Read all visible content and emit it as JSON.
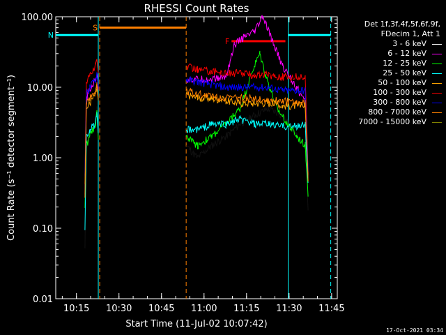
{
  "chart_data": {
    "type": "line",
    "title": "RHESSI Count Rates",
    "xlabel": "Start Time (11-Jul-02 10:07:42)",
    "ylabel": "Count Rate (s⁻¹ detector segment⁻¹)",
    "xaxis_units": "minutes since 10:07:42",
    "xlim": [
      0,
      99.3
    ],
    "ylim": [
      0.01,
      100
    ],
    "yscale": "log",
    "x_ticks": [
      "10:15",
      "10:30",
      "10:45",
      "11:00",
      "11:15",
      "11:30",
      "11:45"
    ],
    "y_ticks": [
      "0.01",
      "0.10",
      "1.00",
      "10.00",
      "100.00"
    ],
    "legend_header": [
      "Det 1f,3f,4f,5f,6f,9f,",
      "FDecim 1, Att 1"
    ],
    "series": [
      {
        "name": "3 - 6 keV",
        "color": "#000000",
        "points": [
          [
            10.3,
            0.05
          ],
          [
            10.8,
            1.5
          ],
          [
            12,
            2
          ],
          [
            14,
            3
          ],
          [
            14.5,
            5
          ],
          [
            15,
            2
          ],
          [
            46,
            1.5
          ],
          [
            50,
            1
          ],
          [
            55,
            1.5
          ],
          [
            60,
            2
          ],
          [
            65,
            3
          ],
          [
            70,
            4
          ],
          [
            75,
            5
          ],
          [
            80,
            4
          ],
          [
            85,
            2
          ],
          [
            88,
            1.5
          ],
          [
            89,
            0.2
          ]
        ]
      },
      {
        "name": "6 - 12 keV",
        "color": "#ff00ff",
        "points": [
          [
            10.3,
            0.3
          ],
          [
            10.8,
            7
          ],
          [
            12,
            9
          ],
          [
            14,
            13
          ],
          [
            14.5,
            16
          ],
          [
            15,
            10
          ],
          [
            46,
            13
          ],
          [
            55,
            13
          ],
          [
            60,
            14
          ],
          [
            63,
            40
          ],
          [
            66,
            50
          ],
          [
            70,
            60
          ],
          [
            73,
            100
          ],
          [
            76,
            50
          ],
          [
            80,
            20
          ],
          [
            85,
            10
          ],
          [
            88,
            6
          ],
          [
            89,
            0.5
          ]
        ]
      },
      {
        "name": "12 - 25 keV",
        "color": "#00ff00",
        "points": [
          [
            10.3,
            0.2
          ],
          [
            10.8,
            1.5
          ],
          [
            12,
            2
          ],
          [
            14,
            3
          ],
          [
            14.5,
            5
          ],
          [
            15,
            2
          ],
          [
            46,
            2
          ],
          [
            50,
            1.5
          ],
          [
            55,
            2
          ],
          [
            60,
            3
          ],
          [
            65,
            5
          ],
          [
            70,
            20
          ],
          [
            72,
            30
          ],
          [
            74,
            15
          ],
          [
            78,
            5
          ],
          [
            82,
            3
          ],
          [
            85,
            2
          ],
          [
            88,
            1.5
          ],
          [
            89,
            0.3
          ]
        ]
      },
      {
        "name": "25 - 50 keV",
        "color": "#00ffff",
        "points": [
          [
            10.3,
            0.1
          ],
          [
            10.8,
            2
          ],
          [
            12,
            2.5
          ],
          [
            14,
            3
          ],
          [
            14.5,
            4
          ],
          [
            15,
            2
          ],
          [
            46,
            2.5
          ],
          [
            50,
            2.5
          ],
          [
            55,
            3
          ],
          [
            60,
            3
          ],
          [
            65,
            3.5
          ],
          [
            70,
            3
          ],
          [
            75,
            3
          ],
          [
            80,
            2.8
          ],
          [
            85,
            2.8
          ],
          [
            88,
            3
          ],
          [
            89,
            0.4
          ]
        ]
      },
      {
        "name": "50 - 100 keV",
        "color": "#ffa500",
        "points": [
          [
            10.3,
            0.3
          ],
          [
            10.8,
            5
          ],
          [
            12,
            6
          ],
          [
            14,
            8
          ],
          [
            14.5,
            10
          ],
          [
            15,
            6
          ],
          [
            46,
            8
          ],
          [
            50,
            7
          ],
          [
            55,
            7
          ],
          [
            60,
            6.5
          ],
          [
            65,
            6
          ],
          [
            70,
            6
          ],
          [
            75,
            6
          ],
          [
            80,
            5.5
          ],
          [
            85,
            5.5
          ],
          [
            88,
            5.5
          ],
          [
            89,
            0.5
          ]
        ]
      },
      {
        "name": "100 - 300 keV",
        "color": "#ff0000",
        "points": [
          [
            10.3,
            0.5
          ],
          [
            10.8,
            12
          ],
          [
            12,
            15
          ],
          [
            14,
            20
          ],
          [
            14.5,
            25
          ],
          [
            15,
            15
          ],
          [
            46,
            20
          ],
          [
            50,
            18
          ],
          [
            55,
            17
          ],
          [
            60,
            16
          ],
          [
            65,
            16
          ],
          [
            70,
            15
          ],
          [
            75,
            15
          ],
          [
            80,
            14
          ],
          [
            85,
            14
          ],
          [
            88,
            14
          ],
          [
            89,
            0.6
          ]
        ]
      },
      {
        "name": "300 - 800 keV",
        "color": "#0000ff",
        "points": [
          [
            10.3,
            0.5
          ],
          [
            10.8,
            8
          ],
          [
            12,
            10
          ],
          [
            14,
            13
          ],
          [
            14.5,
            16
          ],
          [
            15,
            10
          ],
          [
            46,
            13
          ],
          [
            50,
            12
          ],
          [
            55,
            11
          ],
          [
            60,
            10
          ],
          [
            65,
            10
          ],
          [
            70,
            10
          ],
          [
            75,
            10
          ],
          [
            80,
            9
          ],
          [
            85,
            9
          ],
          [
            88,
            9
          ],
          [
            89,
            0.6
          ]
        ]
      },
      {
        "name": "800 - 7000 keV",
        "color": "#ff8000",
        "points": [
          [
            10.3,
            0.4
          ],
          [
            10.8,
            6
          ],
          [
            12,
            7
          ],
          [
            14,
            9
          ],
          [
            14.5,
            11
          ],
          [
            15,
            7
          ],
          [
            46,
            9
          ],
          [
            50,
            8
          ],
          [
            55,
            7.5
          ],
          [
            60,
            7
          ],
          [
            65,
            7
          ],
          [
            70,
            7
          ],
          [
            75,
            6.5
          ],
          [
            80,
            6.5
          ],
          [
            85,
            6
          ],
          [
            88,
            6
          ],
          [
            89,
            0.5
          ]
        ]
      },
      {
        "name": "7000 - 15000 keV",
        "color": "#808000",
        "points": []
      }
    ],
    "markers": [
      {
        "label": "S",
        "color": "#ff8000",
        "x_start": 15.5,
        "x_end": 46,
        "y": 70,
        "dashed_x": [
          15.5,
          46
        ]
      },
      {
        "label": "N",
        "color": "#00ffff",
        "x_start": 0,
        "x_end": 15,
        "y": 55,
        "dashed_x": [],
        "solid_x": [
          15
        ]
      },
      {
        "label": "F",
        "color": "#ff0000",
        "x_start": 62,
        "x_end": 81,
        "y": 45,
        "dashed_x": []
      },
      {
        "label": "",
        "color": "#00ffff",
        "x_start": 82,
        "x_end": 97,
        "y": 55,
        "dashed_x": [
          97
        ],
        "solid_x": [
          82
        ]
      }
    ]
  },
  "timestamp": "17-Oct-2021 03:34"
}
